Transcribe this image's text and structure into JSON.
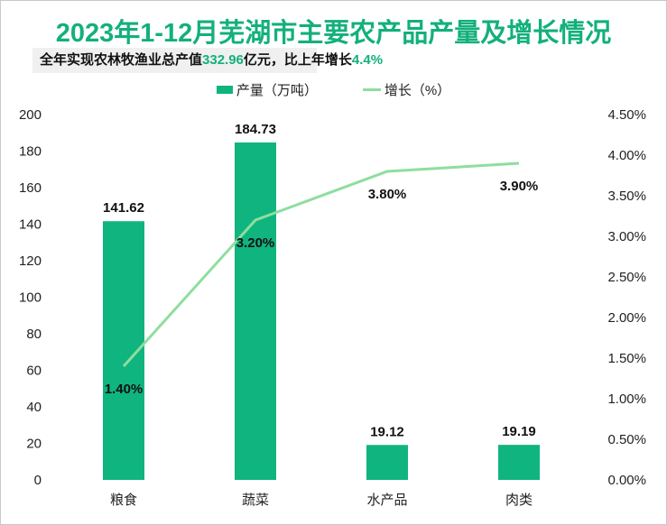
{
  "chart_data": {
    "type": "bar+line",
    "title": "2023年1-12月芜湖市主要农产品产量及增长情况",
    "subtitle": {
      "prefix": "全年实现农林牧渔业总产值",
      "value1": "332.96",
      "middle": "亿元，比上年增长",
      "value2": "4.4%"
    },
    "categories": [
      "粮食",
      "蔬菜",
      "水产品",
      "肉类"
    ],
    "series": [
      {
        "name": "产量（万吨）",
        "type": "bar",
        "axis": "left",
        "values": [
          141.62,
          184.73,
          19.12,
          19.19
        ],
        "labels": [
          "141.62",
          "184.73",
          "19.12",
          "19.19"
        ],
        "color": "#10b47f"
      },
      {
        "name": "增长（%）",
        "type": "line",
        "axis": "right",
        "values": [
          1.4,
          3.2,
          3.8,
          3.9
        ],
        "labels": [
          "1.40%",
          "3.20%",
          "3.80%",
          "3.90%"
        ],
        "color": "#8ede9e"
      }
    ],
    "ylim": [
      0,
      200
    ],
    "yticks": [
      "0",
      "20",
      "40",
      "60",
      "80",
      "100",
      "120",
      "140",
      "160",
      "180",
      "200"
    ],
    "y2lim": [
      0,
      4.5
    ],
    "y2ticks": [
      "0.00%",
      "0.50%",
      "1.00%",
      "1.50%",
      "2.00%",
      "2.50%",
      "3.00%",
      "3.50%",
      "4.00%",
      "4.50%"
    ],
    "legend": "top",
    "grid": false
  }
}
